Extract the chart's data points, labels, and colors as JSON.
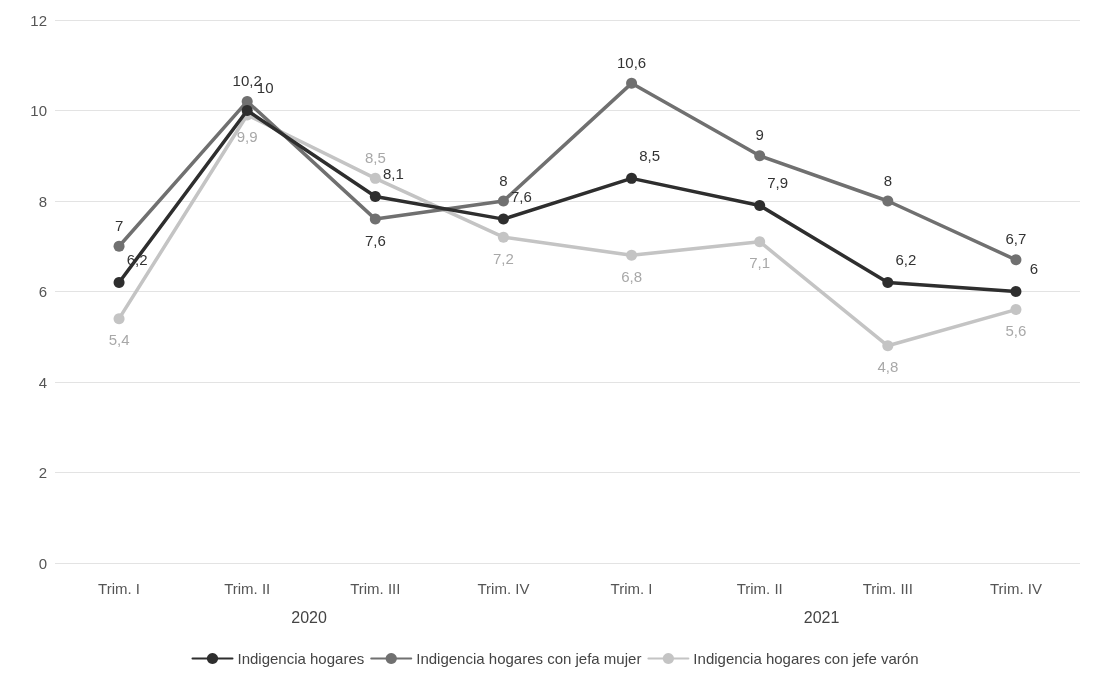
{
  "chart_data": {
    "type": "line",
    "categories": [
      "Trim. I",
      "Trim. II",
      "Trim. III",
      "Trim. IV",
      "Trim. I",
      "Trim. II",
      "Trim. III",
      "Trim. IV"
    ],
    "series": [
      {
        "name": "Indigencia hogares",
        "color": "#2e2e2e",
        "values": [
          6.2,
          10,
          8.1,
          7.6,
          8.5,
          7.9,
          6.2,
          6
        ],
        "value_labels": [
          "6,2",
          "10",
          "8,1",
          "7,6",
          "8,5",
          "7,9",
          "6,2",
          "6"
        ]
      },
      {
        "name": "Indigencia hogares con jefa mujer",
        "color": "#707070",
        "values": [
          7,
          10.2,
          7.6,
          8,
          10.6,
          9,
          8,
          6.7
        ],
        "value_labels": [
          "7",
          "10,2",
          "7,6",
          "8",
          "10,6",
          "9",
          "8",
          "6,7"
        ]
      },
      {
        "name": "Indigencia hogares con jefe varón",
        "color": "#c4c4c4",
        "values": [
          5.4,
          9.9,
          8.5,
          7.2,
          6.8,
          7.1,
          4.8,
          5.6
        ],
        "value_labels": [
          "5,4",
          "9,9",
          "8,5",
          "7,2",
          "6,8",
          "7,1",
          "4,8",
          "5,6"
        ]
      }
    ],
    "ylim": [
      0,
      12
    ],
    "yticks": [
      0,
      2,
      4,
      6,
      8,
      10,
      12
    ],
    "annotations": [
      "2020",
      "2021"
    ],
    "grid": "y",
    "legend": "bottom",
    "marker": "circle",
    "line_style": "solid"
  }
}
